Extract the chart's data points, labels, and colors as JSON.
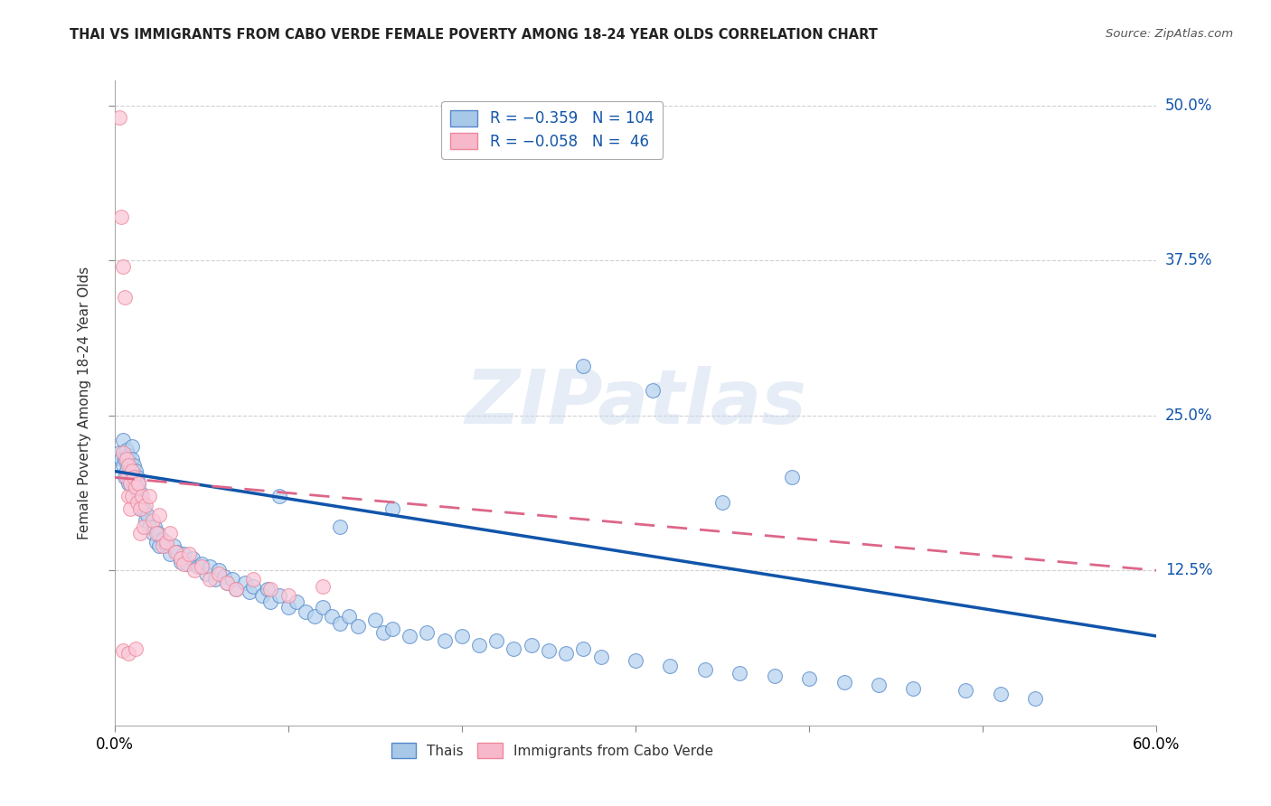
{
  "title": "THAI VS IMMIGRANTS FROM CABO VERDE FEMALE POVERTY AMONG 18-24 YEAR OLDS CORRELATION CHART",
  "source": "Source: ZipAtlas.com",
  "ylabel": "Female Poverty Among 18-24 Year Olds",
  "right_yticks": [
    "50.0%",
    "37.5%",
    "25.0%",
    "12.5%"
  ],
  "right_ytick_vals": [
    0.5,
    0.375,
    0.25,
    0.125
  ],
  "legend_color1": "#a8c8e8",
  "legend_color2": "#f8b8cc",
  "trendline1_color": "#1155aa",
  "trendline2_color": "#dd6688",
  "watermark_text": "ZIPatlas",
  "scatter1_color": "#b8d4ee",
  "scatter1_edgecolor": "#5588cc",
  "scatter2_color": "#fac8d8",
  "scatter2_edgecolor": "#ee8899",
  "xmin": 0.0,
  "xmax": 0.6,
  "ymin": 0.0,
  "ymax": 0.52,
  "background_color": "#ffffff",
  "grid_color": "#cccccc",
  "thai_x": [
    0.003,
    0.004,
    0.005,
    0.005,
    0.006,
    0.006,
    0.007,
    0.007,
    0.008,
    0.008,
    0.009,
    0.009,
    0.01,
    0.01,
    0.01,
    0.011,
    0.011,
    0.012,
    0.012,
    0.013,
    0.013,
    0.014,
    0.014,
    0.015,
    0.015,
    0.016,
    0.017,
    0.018,
    0.019,
    0.02,
    0.022,
    0.023,
    0.024,
    0.025,
    0.026,
    0.028,
    0.03,
    0.032,
    0.034,
    0.036,
    0.038,
    0.04,
    0.042,
    0.045,
    0.048,
    0.05,
    0.053,
    0.055,
    0.058,
    0.06,
    0.063,
    0.065,
    0.068,
    0.07,
    0.075,
    0.078,
    0.08,
    0.085,
    0.088,
    0.09,
    0.095,
    0.1,
    0.105,
    0.11,
    0.115,
    0.12,
    0.125,
    0.13,
    0.135,
    0.14,
    0.15,
    0.155,
    0.16,
    0.17,
    0.18,
    0.19,
    0.2,
    0.21,
    0.22,
    0.23,
    0.24,
    0.25,
    0.26,
    0.27,
    0.28,
    0.3,
    0.32,
    0.34,
    0.36,
    0.38,
    0.4,
    0.42,
    0.44,
    0.46,
    0.49,
    0.51,
    0.53,
    0.27,
    0.31,
    0.35,
    0.39,
    0.16,
    0.095,
    0.13
  ],
  "thai_y": [
    0.22,
    0.215,
    0.23,
    0.21,
    0.215,
    0.2,
    0.222,
    0.205,
    0.218,
    0.195,
    0.21,
    0.195,
    0.225,
    0.215,
    0.2,
    0.21,
    0.195,
    0.205,
    0.19,
    0.2,
    0.195,
    0.185,
    0.195,
    0.188,
    0.175,
    0.18,
    0.175,
    0.165,
    0.17,
    0.16,
    0.155,
    0.16,
    0.148,
    0.155,
    0.145,
    0.15,
    0.145,
    0.138,
    0.145,
    0.14,
    0.132,
    0.138,
    0.13,
    0.135,
    0.128,
    0.13,
    0.122,
    0.128,
    0.118,
    0.125,
    0.12,
    0.115,
    0.118,
    0.11,
    0.115,
    0.108,
    0.112,
    0.105,
    0.11,
    0.1,
    0.105,
    0.095,
    0.1,
    0.092,
    0.088,
    0.095,
    0.088,
    0.082,
    0.088,
    0.08,
    0.085,
    0.075,
    0.078,
    0.072,
    0.075,
    0.068,
    0.072,
    0.065,
    0.068,
    0.062,
    0.065,
    0.06,
    0.058,
    0.062,
    0.055,
    0.052,
    0.048,
    0.045,
    0.042,
    0.04,
    0.038,
    0.035,
    0.033,
    0.03,
    0.028,
    0.025,
    0.022,
    0.29,
    0.27,
    0.18,
    0.2,
    0.175,
    0.185,
    0.16
  ],
  "cabo_x": [
    0.003,
    0.004,
    0.005,
    0.005,
    0.006,
    0.007,
    0.007,
    0.008,
    0.008,
    0.009,
    0.009,
    0.01,
    0.01,
    0.011,
    0.012,
    0.013,
    0.014,
    0.015,
    0.015,
    0.016,
    0.017,
    0.018,
    0.02,
    0.022,
    0.024,
    0.026,
    0.028,
    0.03,
    0.032,
    0.035,
    0.038,
    0.04,
    0.043,
    0.046,
    0.05,
    0.055,
    0.06,
    0.065,
    0.07,
    0.08,
    0.09,
    0.1,
    0.12,
    0.005,
    0.008,
    0.012
  ],
  "cabo_y": [
    0.49,
    0.41,
    0.37,
    0.22,
    0.345,
    0.215,
    0.2,
    0.21,
    0.185,
    0.195,
    0.175,
    0.205,
    0.185,
    0.2,
    0.192,
    0.18,
    0.195,
    0.175,
    0.155,
    0.185,
    0.16,
    0.178,
    0.185,
    0.165,
    0.155,
    0.17,
    0.145,
    0.148,
    0.155,
    0.14,
    0.135,
    0.13,
    0.138,
    0.125,
    0.128,
    0.118,
    0.122,
    0.115,
    0.11,
    0.118,
    0.11,
    0.105,
    0.112,
    0.06,
    0.058,
    0.062
  ],
  "trendline1_x0": 0.0,
  "trendline1_y0": 0.205,
  "trendline1_x1": 0.6,
  "trendline1_y1": 0.072,
  "trendline2_x0": 0.0,
  "trendline2_y0": 0.2,
  "trendline2_x1": 0.2,
  "trendline2_y1": 0.175
}
